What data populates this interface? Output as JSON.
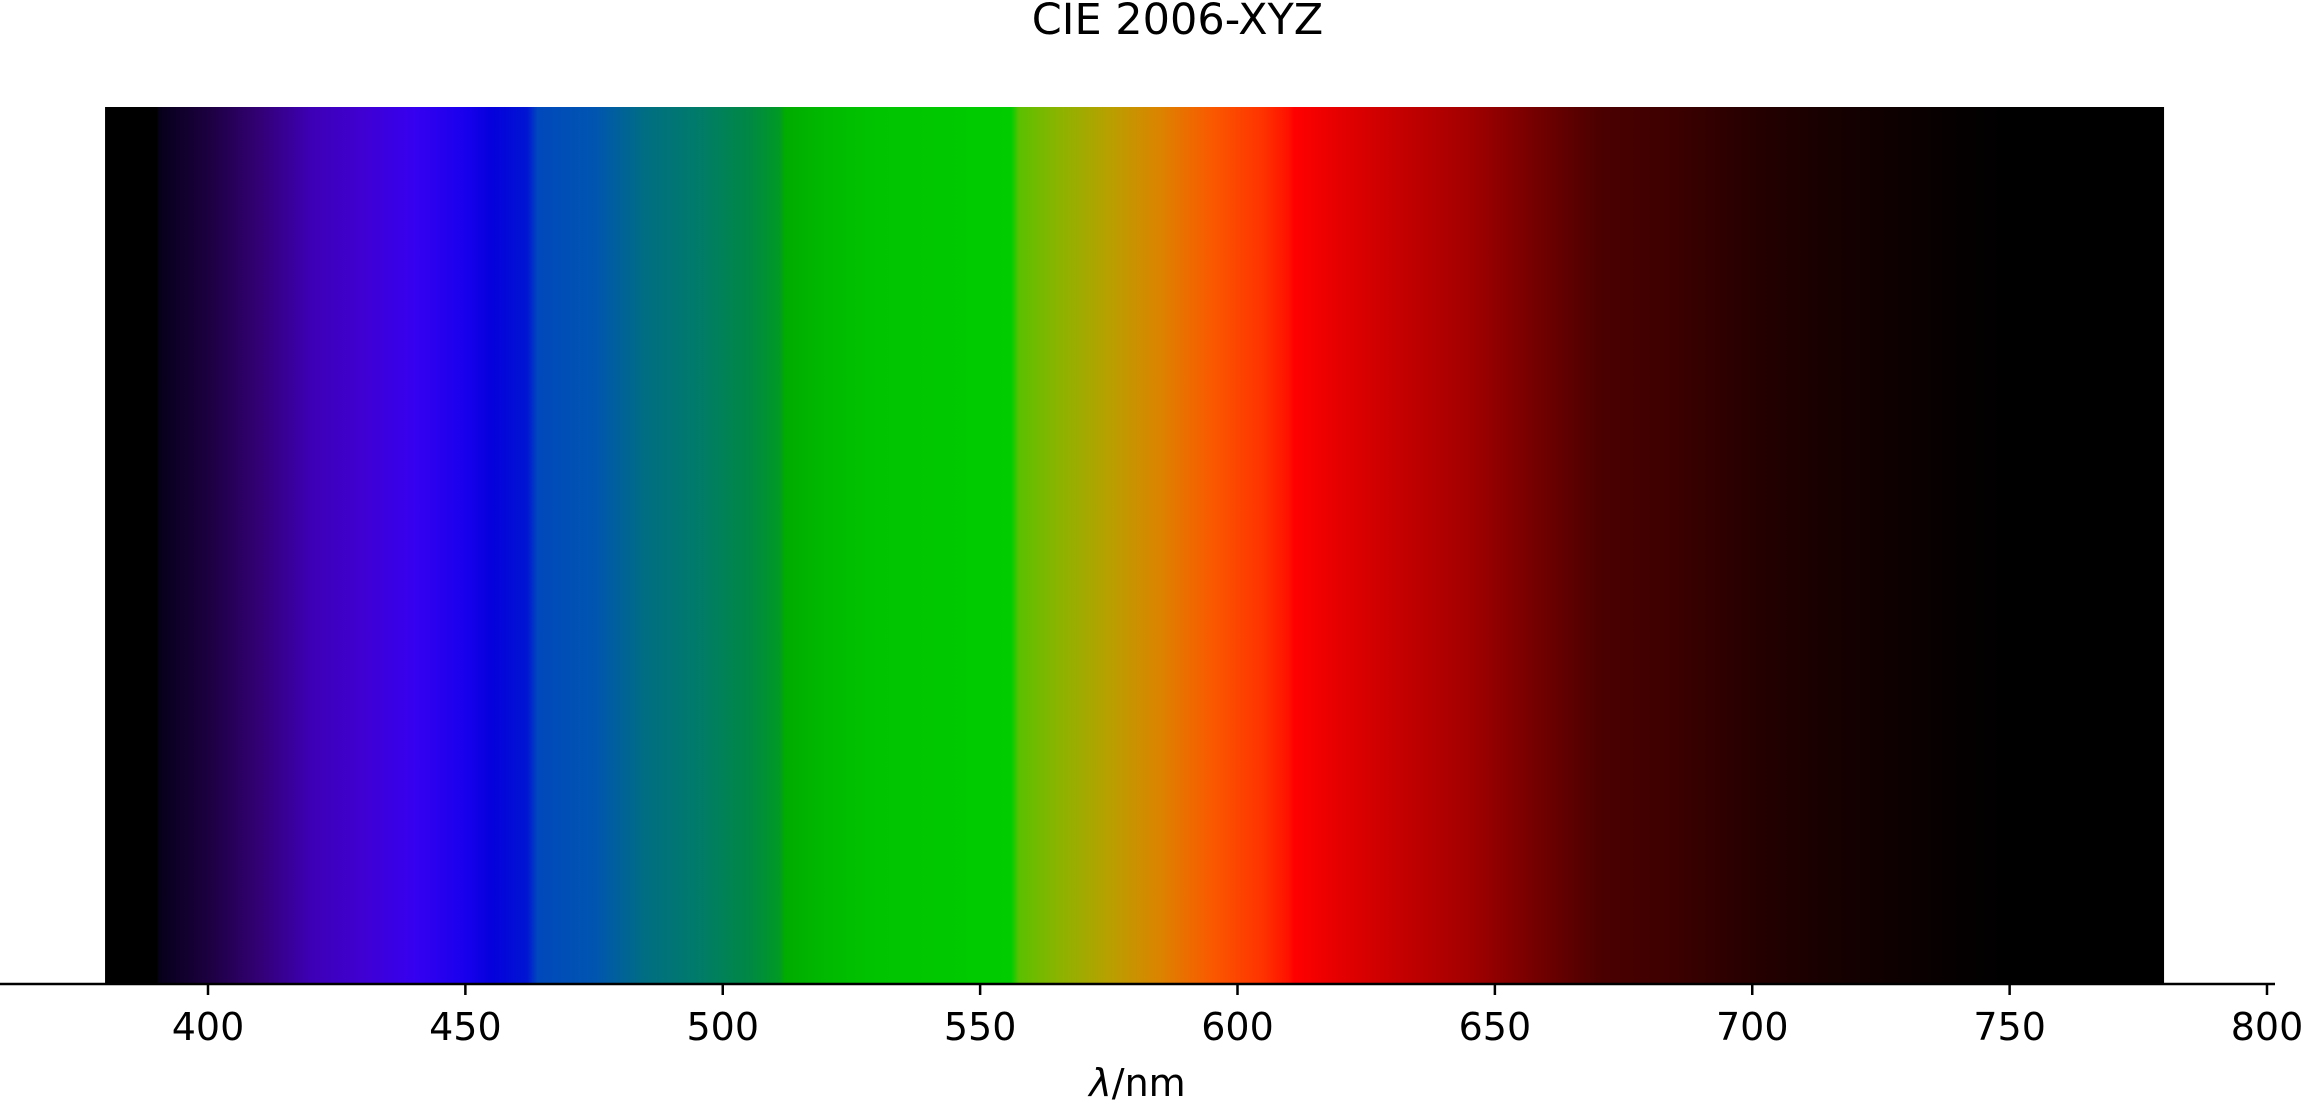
{
  "chart_data": {
    "type": "heatmap",
    "title": "CIE 2006-XYZ",
    "xlabel_symbol": "λ",
    "xlabel_unit": "/nm",
    "xlim": [
      360,
      800
    ],
    "x_ticks": [
      400,
      450,
      500,
      550,
      600,
      650,
      700,
      750,
      800
    ],
    "x_tick_labels": [
      "400",
      "450",
      "500",
      "550",
      "600",
      "650",
      "700",
      "750",
      "800"
    ],
    "spectrum_range": [
      380,
      780
    ],
    "legend": "none",
    "grid": false,
    "color_stops": [
      {
        "wavelength": 380,
        "color": "#000000"
      },
      {
        "wavelength": 390,
        "color": "#000000"
      },
      {
        "wavelength": 390.5,
        "color": "#06001a"
      },
      {
        "wavelength": 400,
        "color": "#1c0040"
      },
      {
        "wavelength": 410,
        "color": "#330075"
      },
      {
        "wavelength": 420,
        "color": "#3e00b5"
      },
      {
        "wavelength": 430,
        "color": "#3f00d2"
      },
      {
        "wavelength": 440,
        "color": "#3600f0"
      },
      {
        "wavelength": 450,
        "color": "#1800ed"
      },
      {
        "wavelength": 455,
        "color": "#0500dc"
      },
      {
        "wavelength": 462,
        "color": "#0015d2"
      },
      {
        "wavelength": 464,
        "color": "#0048bc"
      },
      {
        "wavelength": 475,
        "color": "#0055b0"
      },
      {
        "wavelength": 485,
        "color": "#006e82"
      },
      {
        "wavelength": 495,
        "color": "#007b6a"
      },
      {
        "wavelength": 505,
        "color": "#008844"
      },
      {
        "wavelength": 511,
        "color": "#009a24"
      },
      {
        "wavelength": 512,
        "color": "#00ac00"
      },
      {
        "wavelength": 520,
        "color": "#00b900"
      },
      {
        "wavelength": 530,
        "color": "#00c400"
      },
      {
        "wavelength": 556,
        "color": "#00cc00"
      },
      {
        "wavelength": 557.5,
        "color": "#5bc000"
      },
      {
        "wavelength": 565,
        "color": "#8ab400"
      },
      {
        "wavelength": 575,
        "color": "#b8a000"
      },
      {
        "wavelength": 585,
        "color": "#dc8300"
      },
      {
        "wavelength": 595,
        "color": "#fa5900"
      },
      {
        "wavelength": 605,
        "color": "#ff3200"
      },
      {
        "wavelength": 610,
        "color": "#ff1000"
      },
      {
        "wavelength": 611,
        "color": "#ff0000"
      },
      {
        "wavelength": 620,
        "color": "#e40000"
      },
      {
        "wavelength": 630,
        "color": "#c90000"
      },
      {
        "wavelength": 645,
        "color": "#a20000"
      },
      {
        "wavelength": 660,
        "color": "#6d0000"
      },
      {
        "wavelength": 670,
        "color": "#4c0000"
      },
      {
        "wavelength": 685,
        "color": "#3c0000"
      },
      {
        "wavelength": 700,
        "color": "#260000"
      },
      {
        "wavelength": 715,
        "color": "#170000"
      },
      {
        "wavelength": 730,
        "color": "#0c0000"
      },
      {
        "wavelength": 740,
        "color": "#050000"
      },
      {
        "wavelength": 750,
        "color": "#000000"
      },
      {
        "wavelength": 780,
        "color": "#000000"
      }
    ]
  }
}
